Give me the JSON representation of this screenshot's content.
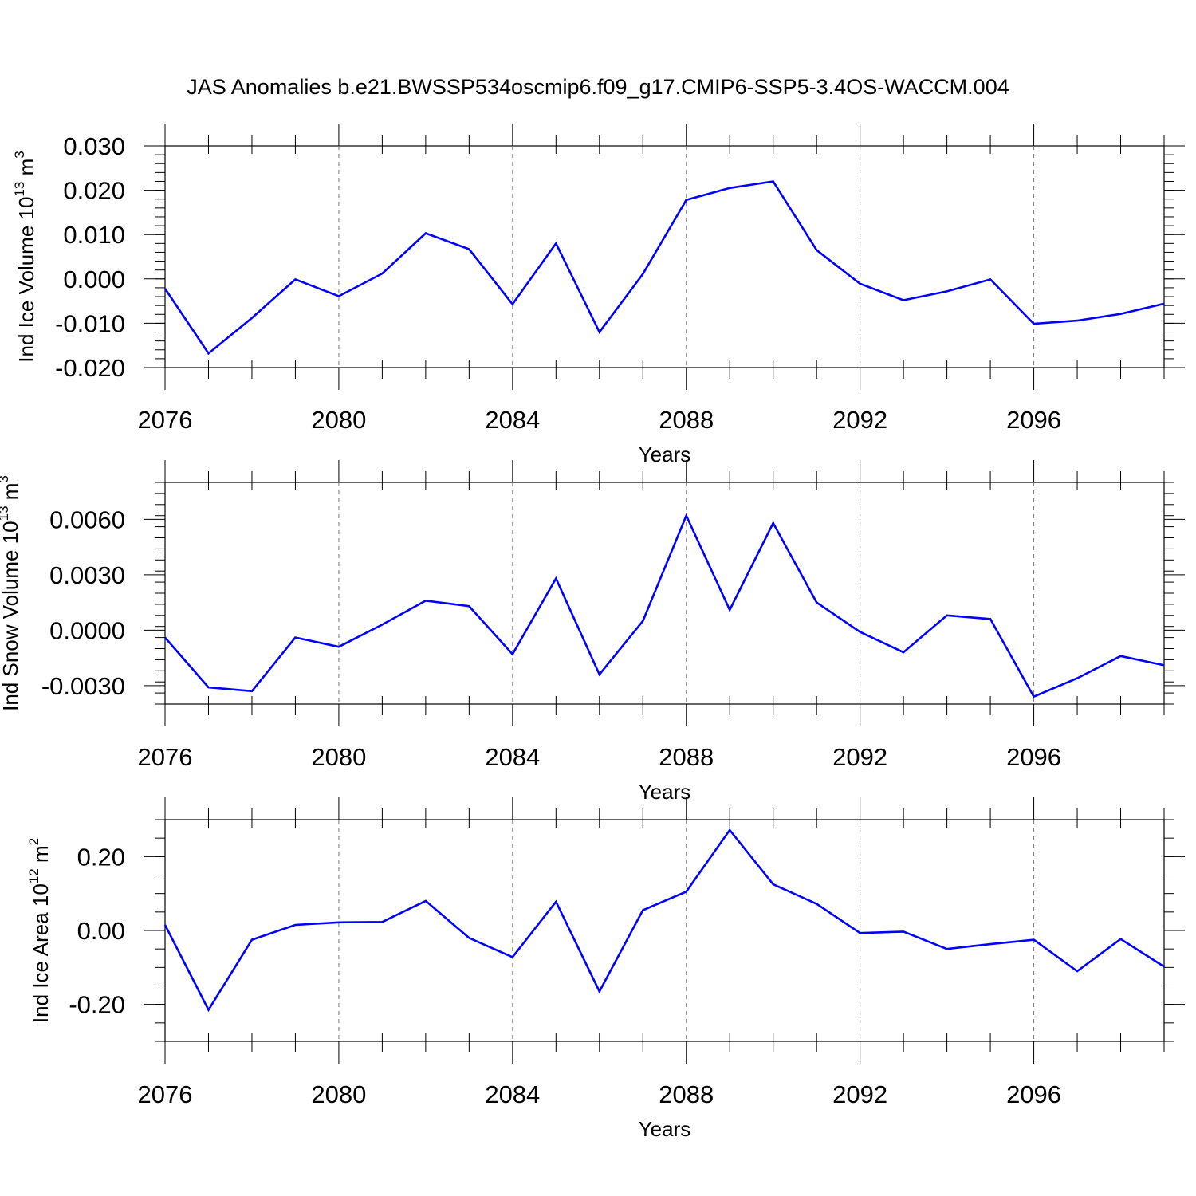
{
  "title": "JAS Anomalies b.e21.BWSSP534oscmip6.f09_g17.CMIP6-SSP5-3.4OS-WACCM.004",
  "colors": {
    "series": "#0000ff",
    "axis": "#000000",
    "grid": "#777777"
  },
  "chart_data": [
    {
      "type": "line",
      "title": "",
      "xlabel": "Years",
      "ylabel": "Ind Ice Volume 10",
      "ylabel_exp": "13",
      "ylabel_unit": " m",
      "ylabel_unit_exp": "3",
      "xlim": [
        2076,
        2099
      ],
      "ylim": [
        -0.02,
        0.03
      ],
      "yticks": [
        -0.02,
        -0.01,
        0.0,
        0.01,
        0.02,
        0.03
      ],
      "ytick_labels": [
        "-0.020",
        "-0.010",
        "0.000",
        "0.010",
        "0.020",
        "0.030"
      ],
      "yminor_step": 0.002,
      "xticks": [
        2076,
        2080,
        2084,
        2088,
        2092,
        2096
      ],
      "xtick_labels": [
        "2076",
        "2080",
        "2084",
        "2088",
        "2092",
        "2096"
      ],
      "grid": "x-major dashed",
      "x": [
        2076,
        2077,
        2078,
        2079,
        2080,
        2081,
        2082,
        2083,
        2084,
        2085,
        2086,
        2087,
        2088,
        2089,
        2090,
        2091,
        2092,
        2093,
        2094,
        2095,
        2096,
        2097,
        2098,
        2099
      ],
      "series": [
        {
          "name": "Ind Ice Volume",
          "values": [
            -0.0022,
            -0.0168,
            -0.0088,
            -0.0001,
            -0.0039,
            0.0012,
            0.0103,
            0.0067,
            -0.0057,
            0.008,
            -0.012,
            0.0011,
            0.0178,
            0.0205,
            0.022,
            0.0065,
            -0.0011,
            -0.0048,
            -0.0028,
            -0.0001,
            -0.0101,
            -0.0094,
            -0.0079,
            -0.0056
          ]
        }
      ]
    },
    {
      "type": "line",
      "title": "",
      "xlabel": "Years",
      "ylabel": "Ind Snow Volume 10",
      "ylabel_exp": "13",
      "ylabel_unit": " m",
      "ylabel_unit_exp": "3",
      "xlim": [
        2076,
        2099
      ],
      "ylim": [
        -0.004,
        0.008
      ],
      "yticks": [
        -0.003,
        0.0,
        0.003,
        0.006
      ],
      "ytick_labels": [
        "-0.0030",
        "0.0000",
        "0.0030",
        "0.0060"
      ],
      "yminor_step": 0.0006,
      "xticks": [
        2076,
        2080,
        2084,
        2088,
        2092,
        2096
      ],
      "xtick_labels": [
        "2076",
        "2080",
        "2084",
        "2088",
        "2092",
        "2096"
      ],
      "grid": "x-major dashed",
      "x": [
        2076,
        2077,
        2078,
        2079,
        2080,
        2081,
        2082,
        2083,
        2084,
        2085,
        2086,
        2087,
        2088,
        2089,
        2090,
        2091,
        2092,
        2093,
        2094,
        2095,
        2096,
        2097,
        2098,
        2099
      ],
      "series": [
        {
          "name": "Ind Snow Volume",
          "values": [
            -0.0004,
            -0.0031,
            -0.0033,
            -0.0004,
            -0.0009,
            0.0003,
            0.0016,
            0.0013,
            -0.0013,
            0.0028,
            -0.0024,
            0.0005,
            0.0062,
            0.0011,
            0.0058,
            0.0015,
            -0.0001,
            -0.0012,
            0.0008,
            0.0006,
            -0.0036,
            -0.0026,
            -0.0014,
            -0.0019
          ]
        }
      ]
    },
    {
      "type": "line",
      "title": "",
      "xlabel": "Years",
      "ylabel": "Ind Ice Area 10",
      "ylabel_exp": "12",
      "ylabel_unit": " m",
      "ylabel_unit_exp": "2",
      "xlim": [
        2076,
        2099
      ],
      "ylim": [
        -0.3,
        0.3
      ],
      "yticks": [
        -0.2,
        0.0,
        0.2
      ],
      "ytick_labels": [
        "-0.20",
        "0.00",
        "0.20"
      ],
      "yminor_step": 0.05,
      "xticks": [
        2076,
        2080,
        2084,
        2088,
        2092,
        2096
      ],
      "xtick_labels": [
        "2076",
        "2080",
        "2084",
        "2088",
        "2092",
        "2096"
      ],
      "grid": "x-major dashed",
      "x": [
        2076,
        2077,
        2078,
        2079,
        2080,
        2081,
        2082,
        2083,
        2084,
        2085,
        2086,
        2087,
        2088,
        2089,
        2090,
        2091,
        2092,
        2093,
        2094,
        2095,
        2096,
        2097,
        2098,
        2099
      ],
      "series": [
        {
          "name": "Ind Ice Area",
          "values": [
            0.015,
            -0.215,
            -0.025,
            0.015,
            0.022,
            0.023,
            0.08,
            -0.02,
            -0.072,
            0.078,
            -0.165,
            0.055,
            0.105,
            0.272,
            0.125,
            0.072,
            -0.007,
            -0.003,
            -0.05,
            -0.037,
            -0.025,
            -0.11,
            -0.023,
            -0.098
          ]
        }
      ]
    }
  ]
}
